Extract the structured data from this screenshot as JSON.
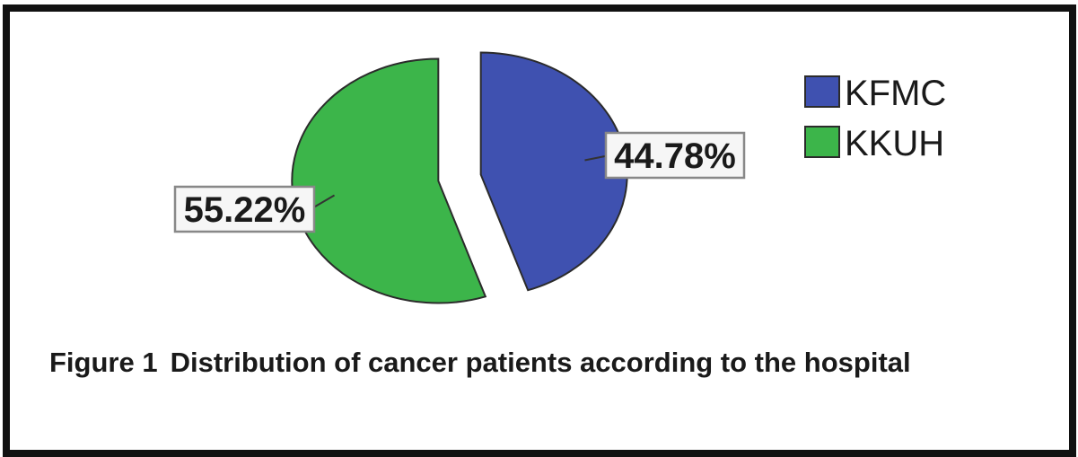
{
  "chart_data": {
    "type": "pie",
    "exploded": true,
    "categories": [
      "KFMC",
      "KKUH"
    ],
    "values": [
      44.78,
      55.22
    ],
    "data_labels": [
      "44.78%",
      "55.22%"
    ],
    "colors": [
      "#3f51b0",
      "#3cb54a"
    ],
    "legend_placement": "top-right",
    "caption": {
      "figure_label": "Figure 1",
      "text": "Distribution of cancer patients according to the hospital"
    }
  }
}
